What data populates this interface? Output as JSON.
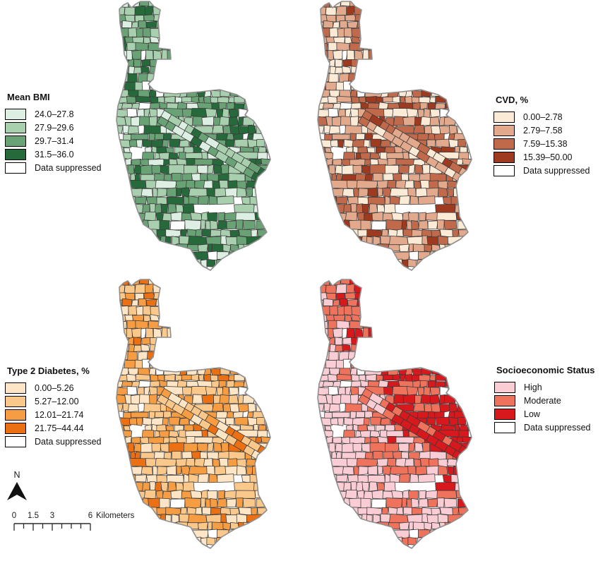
{
  "figure": {
    "background": "#ffffff"
  },
  "compass": {
    "label": "N"
  },
  "scalebar": {
    "labels": [
      "0",
      "1.5",
      "3",
      "6"
    ],
    "unit": "Kilometers"
  },
  "maps": [
    {
      "id": "bmi",
      "legend_title": "Mean BMI",
      "classes": [
        {
          "label": "24.0–27.8",
          "color": "#ddeee3"
        },
        {
          "label": "27.9–29.6",
          "color": "#a8cfae"
        },
        {
          "label": "29.7–31.4",
          "color": "#69a275"
        },
        {
          "label": "31.5–36.0",
          "color": "#26693b"
        },
        {
          "label": "Data suppressed",
          "color": "#ffffff"
        }
      ]
    },
    {
      "id": "cvd",
      "legend_title": "CVD, %",
      "classes": [
        {
          "label": "0.00–2.78",
          "color": "#fbead6"
        },
        {
          "label": "2.79–7.58",
          "color": "#e2a98c"
        },
        {
          "label": "7.59–15.38",
          "color": "#c0694b"
        },
        {
          "label": "15.39–50.00",
          "color": "#9e3a20"
        },
        {
          "label": "Data suppressed",
          "color": "#ffffff"
        }
      ]
    },
    {
      "id": "t2d",
      "legend_title": "Type 2 Diabetes, %",
      "classes": [
        {
          "label": "0.00–5.26",
          "color": "#fde5c5"
        },
        {
          "label": "5.27–12.00",
          "color": "#fbc88b"
        },
        {
          "label": "12.01–21.74",
          "color": "#f69c42"
        },
        {
          "label": "21.75–44.44",
          "color": "#eb7014"
        },
        {
          "label": "Data suppressed",
          "color": "#ffffff"
        }
      ]
    },
    {
      "id": "ses",
      "legend_title": "Socioeconomic Status",
      "classes": [
        {
          "label": "High",
          "color": "#f9cdd3"
        },
        {
          "label": "Moderate",
          "color": "#ef725c"
        },
        {
          "label": "Low",
          "color": "#d7191e"
        },
        {
          "label": "Data suppressed",
          "color": "#ffffff"
        }
      ]
    }
  ]
}
